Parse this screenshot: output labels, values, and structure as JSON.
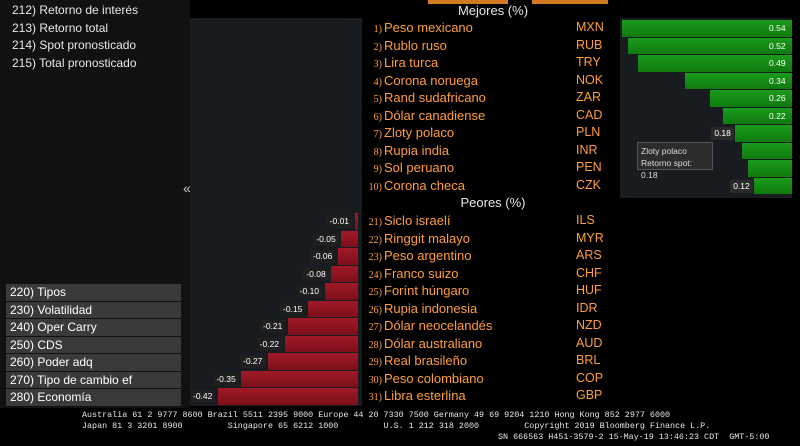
{
  "left_menu": {
    "top_items": [
      "212) Retorno de interés",
      "213) Retorno total",
      "214) Spot pronosticado",
      "215) Total pronosticado"
    ],
    "bottom_items": [
      "220) Tipos",
      "230) Volatilidad",
      "240) Oper Carry",
      "250) CDS",
      "260) Poder adq",
      "270) Tipo de cambio ef",
      "280) Economía"
    ],
    "collapse_glyph": "«"
  },
  "best": {
    "title": "Mejores (%)",
    "rows": [
      {
        "num": "1)",
        "name": "Peso mexicano",
        "code": "MXN",
        "value": 0.54,
        "label": "0.54"
      },
      {
        "num": "2)",
        "name": "Rublo ruso",
        "code": "RUB",
        "value": 0.52,
        "label": "0.52"
      },
      {
        "num": "3)",
        "name": "Lira turca",
        "code": "TRY",
        "value": 0.49,
        "label": "0.49"
      },
      {
        "num": "4)",
        "name": "Corona noruega",
        "code": "NOK",
        "value": 0.34,
        "label": "0.34"
      },
      {
        "num": "5)",
        "name": "Rand sudafricano",
        "code": "ZAR",
        "value": 0.26,
        "label": "0.26"
      },
      {
        "num": "6)",
        "name": "Dólar canadiense",
        "code": "CAD",
        "value": 0.22,
        "label": "0.22"
      },
      {
        "num": "7)",
        "name": "Zloty polaco",
        "code": "PLN",
        "value": 0.18,
        "label": "0.18"
      },
      {
        "num": "8)",
        "name": "Rupia india",
        "code": "INR",
        "value": 0.16,
        "label": ""
      },
      {
        "num": "9)",
        "name": "Sol peruano",
        "code": "PEN",
        "value": 0.14,
        "label": ""
      },
      {
        "num": "10)",
        "name": "Corona checa",
        "code": "CZK",
        "value": 0.12,
        "label": "0.12"
      }
    ]
  },
  "worst": {
    "title": "Peores (%)",
    "rows": [
      {
        "num": "21)",
        "name": "Siclo israelí",
        "code": "ILS",
        "value": -0.01,
        "label": "-0.01"
      },
      {
        "num": "22)",
        "name": "Ringgit malayo",
        "code": "MYR",
        "value": -0.05,
        "label": "-0.05"
      },
      {
        "num": "23)",
        "name": "Peso argentino",
        "code": "ARS",
        "value": -0.06,
        "label": "-0.06"
      },
      {
        "num": "24)",
        "name": "Franco suizo",
        "code": "CHF",
        "value": -0.08,
        "label": "-0.08"
      },
      {
        "num": "25)",
        "name": "Forínt húngaro",
        "code": "HUF",
        "value": -0.1,
        "label": "-0.10"
      },
      {
        "num": "26)",
        "name": "Rupia indonesia",
        "code": "IDR",
        "value": -0.15,
        "label": "-0.15"
      },
      {
        "num": "27)",
        "name": "Dólar neocelandés",
        "code": "NZD",
        "value": -0.21,
        "label": "-0.21"
      },
      {
        "num": "28)",
        "name": "Dólar australiano",
        "code": "AUD",
        "value": -0.22,
        "label": "-0.22"
      },
      {
        "num": "29)",
        "name": "Real brasileño",
        "code": "BRL",
        "value": -0.27,
        "label": "-0.27"
      },
      {
        "num": "30)",
        "name": "Peso colombiano",
        "code": "COP",
        "value": -0.35,
        "label": "-0.35"
      },
      {
        "num": "31)",
        "name": "Libra esterlina",
        "code": "GBP",
        "value": -0.42,
        "label": "-0.42"
      }
    ]
  },
  "tooltip": {
    "line1": "Zloty polaco",
    "line2": "Retorno spot: 0.18"
  },
  "footer": {
    "line1": "Australia 61 2 9777 8600 Brazil 5511 2395 9000 Europe 44 20 7330 7500 Germany 49 69 9204 1210 Hong Kong 852 2977 6000",
    "line2": "Japan 81 3 3201 8900         Singapore 65 6212 1000         U.S. 1 212 318 2000         Copyright 2019 Bloomberg Finance L.P.",
    "line3": "SN 666563 H451-3579-2 15-May-19 13:46:23 CDT  GMT-5:00"
  },
  "colors": {
    "positive": "#1a9b1a",
    "negative": "#a01a26",
    "accent": "#ff9d3a"
  }
}
